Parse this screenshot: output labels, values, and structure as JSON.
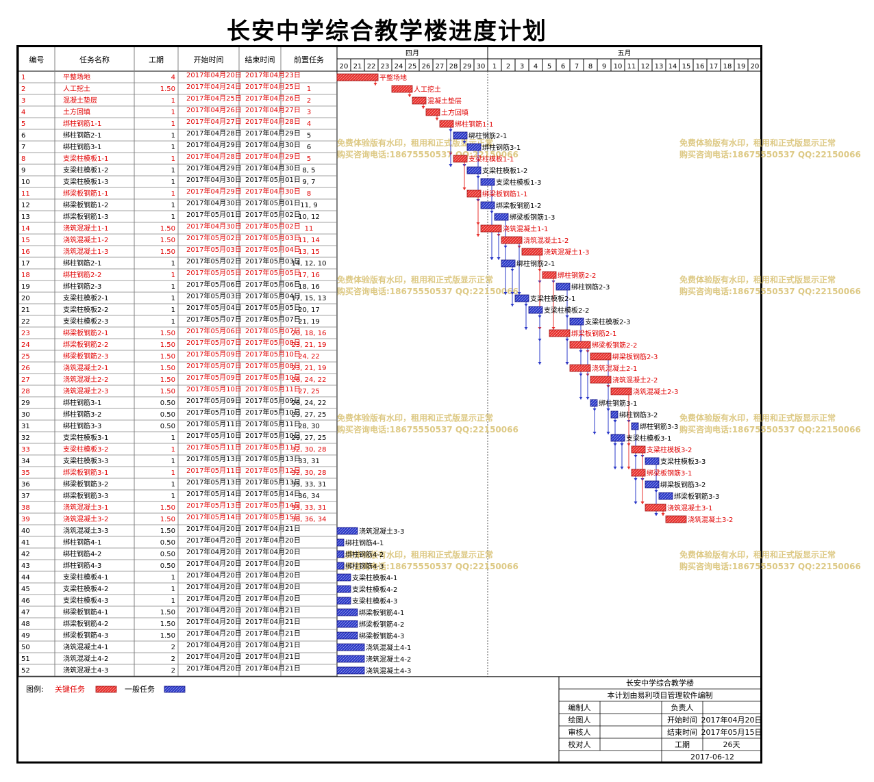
{
  "title": "长安中学综合教学楼进度计划",
  "headers": {
    "id": "编号",
    "name": "任务名称",
    "duration": "工期",
    "start": "开始时间",
    "end": "结束时间",
    "pred": "前置任务"
  },
  "months": [
    "四月",
    "五月"
  ],
  "day_labels": [
    "20",
    "21",
    "22",
    "23",
    "24",
    "25",
    "26",
    "27",
    "28",
    "29",
    "30",
    "1",
    "2",
    "3",
    "4",
    "5",
    "6",
    "7",
    "8",
    "9",
    "10",
    "11",
    "12",
    "13",
    "14",
    "15",
    "16",
    "17",
    "18",
    "19",
    "20"
  ],
  "watermark": {
    "line1": "免费体验版有水印，租用和正式版显示正常",
    "line2": "购买咨询电话:18675550537 QQ:22150066"
  },
  "legend": {
    "label": "图例:",
    "critical": "关键任务",
    "normal": "一般任务"
  },
  "colors": {
    "critical": "#e8302c",
    "normal": "#2a38c8",
    "critical_text": "#e00000",
    "grid": "#808080"
  },
  "footer": {
    "project": "长安中学综合教学楼",
    "software": "本计划由易利项目管理软件编制",
    "editor_label": "编制人",
    "owner_label": "负责人",
    "drawer_label": "绘图人",
    "start_label": "开始时间",
    "start_value": "2017年04月20日",
    "reviewer_label": "审核人",
    "end_label": "结束时间",
    "end_value": "2017年05月15日",
    "checker_label": "校对人",
    "duration_label": "工期",
    "duration_value": "26天",
    "date": "2017-06-12"
  },
  "chart_data": {
    "type": "gantt",
    "title": "长安中学综合教学楼进度计划",
    "x_range": [
      "2017-04-20",
      "2017-05-20"
    ],
    "tasks": [
      {
        "id": "1",
        "name": "平整场地",
        "dur": "4",
        "start": "2017年04月20日",
        "end": "2017年04月23日",
        "pred": "",
        "crit": true,
        "s": "04-20",
        "e": "04-23"
      },
      {
        "id": "2",
        "name": "人工挖土",
        "dur": "1.50",
        "start": "2017年04月24日",
        "end": "2017年04月25日",
        "pred": "1",
        "crit": true,
        "s": "04-24",
        "e": "04-25.5"
      },
      {
        "id": "3",
        "name": "混凝土垫层",
        "dur": "1",
        "start": "2017年04月25日",
        "end": "2017年04月26日",
        "pred": "2",
        "crit": true,
        "s": "04-25.5",
        "e": "04-26.5"
      },
      {
        "id": "4",
        "name": "土方回填",
        "dur": "1",
        "start": "2017年04月26日",
        "end": "2017年04月27日",
        "pred": "3",
        "crit": true,
        "s": "04-26.5",
        "e": "04-27.5"
      },
      {
        "id": "5",
        "name": "绑柱钢筋1-1",
        "dur": "1",
        "start": "2017年04月27日",
        "end": "2017年04月28日",
        "pred": "4",
        "crit": true,
        "s": "04-27.5",
        "e": "04-28.5"
      },
      {
        "id": "6",
        "name": "绑柱钢筋2-1",
        "dur": "1",
        "start": "2017年04月28日",
        "end": "2017年04月29日",
        "pred": "5",
        "crit": false,
        "s": "04-28.5",
        "e": "04-29.5"
      },
      {
        "id": "7",
        "name": "绑柱钢筋3-1",
        "dur": "1",
        "start": "2017年04月29日",
        "end": "2017年04月30日",
        "pred": "6",
        "crit": false,
        "s": "04-29.5",
        "e": "04-30.5"
      },
      {
        "id": "8",
        "name": "支梁柱模板1-1",
        "dur": "1",
        "start": "2017年04月28日",
        "end": "2017年04月29日",
        "pred": "5",
        "crit": true,
        "s": "04-28.5",
        "e": "04-29.5"
      },
      {
        "id": "9",
        "name": "支梁柱模板1-2",
        "dur": "1",
        "start": "2017年04月29日",
        "end": "2017年04月30日",
        "pred": "8, 5",
        "crit": false,
        "s": "04-29.5",
        "e": "04-30.5"
      },
      {
        "id": "10",
        "name": "支梁柱模板1-3",
        "dur": "1",
        "start": "2017年04月30日",
        "end": "2017年05月01日",
        "pred": "9, 7",
        "crit": false,
        "s": "04-30.5",
        "e": "05-01.5"
      },
      {
        "id": "11",
        "name": "绑梁板钢筋1-1",
        "dur": "1",
        "start": "2017年04月29日",
        "end": "2017年04月30日",
        "pred": "8",
        "crit": true,
        "s": "04-29.5",
        "e": "04-30.5"
      },
      {
        "id": "12",
        "name": "绑梁板钢筋1-2",
        "dur": "1",
        "start": "2017年04月30日",
        "end": "2017年05月01日",
        "pred": "11, 9",
        "crit": false,
        "s": "04-30.5",
        "e": "05-01.5"
      },
      {
        "id": "13",
        "name": "绑梁板钢筋1-3",
        "dur": "1",
        "start": "2017年05月01日",
        "end": "2017年05月02日",
        "pred": "10, 12",
        "crit": false,
        "s": "05-01.5",
        "e": "05-02.5"
      },
      {
        "id": "14",
        "name": "浇筑混凝土1-1",
        "dur": "1.50",
        "start": "2017年04月30日",
        "end": "2017年05月02日",
        "pred": "11",
        "crit": true,
        "s": "04-30.5",
        "e": "05-02"
      },
      {
        "id": "15",
        "name": "浇筑混凝土1-2",
        "dur": "1.50",
        "start": "2017年05月02日",
        "end": "2017年05月03日",
        "pred": "11, 14",
        "crit": true,
        "s": "05-02",
        "e": "05-03.5"
      },
      {
        "id": "16",
        "name": "浇筑混凝土1-3",
        "dur": "1.50",
        "start": "2017年05月03日",
        "end": "2017年05月04日",
        "pred": "13, 15",
        "crit": true,
        "s": "05-03.5",
        "e": "05-05"
      },
      {
        "id": "17",
        "name": "绑柱钢筋2-1",
        "dur": "1",
        "start": "2017年05月02日",
        "end": "2017年05月03日",
        "pred": "14, 12, 10",
        "crit": false,
        "s": "05-02",
        "e": "05-03"
      },
      {
        "id": "18",
        "name": "绑柱钢筋2-2",
        "dur": "1",
        "start": "2017年05月05日",
        "end": "2017年05月05日",
        "pred": "17, 16",
        "crit": true,
        "s": "05-05",
        "e": "05-06"
      },
      {
        "id": "19",
        "name": "绑柱钢筋2-3",
        "dur": "1",
        "start": "2017年05月06日",
        "end": "2017年05月06日",
        "pred": "18, 16",
        "crit": false,
        "s": "05-06",
        "e": "05-07"
      },
      {
        "id": "20",
        "name": "支梁柱模板2-1",
        "dur": "1",
        "start": "2017年05月03日",
        "end": "2017年05月04日",
        "pred": "17, 15, 13",
        "crit": false,
        "s": "05-03",
        "e": "05-04"
      },
      {
        "id": "21",
        "name": "支梁柱模板2-2",
        "dur": "1",
        "start": "2017年05月04日",
        "end": "2017年05月05日",
        "pred": "20, 17",
        "crit": false,
        "s": "05-04",
        "e": "05-05"
      },
      {
        "id": "22",
        "name": "支梁柱模板2-3",
        "dur": "1",
        "start": "2017年05月07日",
        "end": "2017年05月07日",
        "pred": "21, 19",
        "crit": false,
        "s": "05-07",
        "e": "05-08"
      },
      {
        "id": "23",
        "name": "绑梁板钢筋2-1",
        "dur": "1.50",
        "start": "2017年05月06日",
        "end": "2017年05月07日",
        "pred": "20, 18, 16",
        "crit": true,
        "s": "05-05.5",
        "e": "05-07"
      },
      {
        "id": "24",
        "name": "绑梁板钢筋2-2",
        "dur": "1.50",
        "start": "2017年05月07日",
        "end": "2017年05月08日",
        "pred": "23, 21, 19",
        "crit": true,
        "s": "05-07",
        "e": "05-08.5"
      },
      {
        "id": "25",
        "name": "绑梁板钢筋2-3",
        "dur": "1.50",
        "start": "2017年05月09日",
        "end": "2017年05月10日",
        "pred": "24, 22",
        "crit": true,
        "s": "05-08.5",
        "e": "05-10"
      },
      {
        "id": "26",
        "name": "浇筑混凝土2-1",
        "dur": "1.50",
        "start": "2017年05月07日",
        "end": "2017年05月08日",
        "pred": "23, 21, 19",
        "crit": true,
        "s": "05-07",
        "e": "05-08.5"
      },
      {
        "id": "27",
        "name": "浇筑混凝土2-2",
        "dur": "1.50",
        "start": "2017年05月09日",
        "end": "2017年05月10日",
        "pred": "26, 24, 22",
        "crit": true,
        "s": "05-08.5",
        "e": "05-10"
      },
      {
        "id": "28",
        "name": "浇筑混凝土2-3",
        "dur": "1.50",
        "start": "2017年05月10日",
        "end": "2017年05月11日",
        "pred": "27, 25",
        "crit": true,
        "s": "05-10",
        "e": "05-11.5"
      },
      {
        "id": "29",
        "name": "绑柱钢筋3-1",
        "dur": "0.50",
        "start": "2017年05月09日",
        "end": "2017年05月09日",
        "pred": "26, 24, 22",
        "crit": false,
        "s": "05-08.5",
        "e": "05-09"
      },
      {
        "id": "30",
        "name": "绑柱钢筋3-2",
        "dur": "0.50",
        "start": "2017年05月10日",
        "end": "2017年05月10日",
        "pred": "29, 27, 25",
        "crit": false,
        "s": "05-10",
        "e": "05-10.5"
      },
      {
        "id": "31",
        "name": "绑柱钢筋3-3",
        "dur": "0.50",
        "start": "2017年05月11日",
        "end": "2017年05月11日",
        "pred": "28, 30",
        "crit": false,
        "s": "05-11.5",
        "e": "05-12"
      },
      {
        "id": "32",
        "name": "支梁柱模板3-1",
        "dur": "1",
        "start": "2017年05月10日",
        "end": "2017年05月10日",
        "pred": "29, 27, 25",
        "crit": false,
        "s": "05-10",
        "e": "05-11"
      },
      {
        "id": "33",
        "name": "支梁柱模板3-2",
        "dur": "1",
        "start": "2017年05月11日",
        "end": "2017年05月11日",
        "pred": "32, 30, 28",
        "crit": true,
        "s": "05-11.5",
        "e": "05-12.5"
      },
      {
        "id": "34",
        "name": "支梁柱模板3-3",
        "dur": "1",
        "start": "2017年05月13日",
        "end": "2017年05月13日",
        "pred": "33, 31",
        "crit": false,
        "s": "05-12.5",
        "e": "05-13.5"
      },
      {
        "id": "35",
        "name": "绑梁板钢筋3-1",
        "dur": "1",
        "start": "2017年05月11日",
        "end": "2017年05月12日",
        "pred": "32, 30, 28",
        "crit": true,
        "s": "05-11.5",
        "e": "05-12.5"
      },
      {
        "id": "36",
        "name": "绑梁板钢筋3-2",
        "dur": "1",
        "start": "2017年05月13日",
        "end": "2017年05月13日",
        "pred": "35, 33, 31",
        "crit": false,
        "s": "05-12.5",
        "e": "05-13.5"
      },
      {
        "id": "37",
        "name": "绑梁板钢筋3-3",
        "dur": "1",
        "start": "2017年05月14日",
        "end": "2017年05月14日",
        "pred": "36, 34",
        "crit": false,
        "s": "05-13.5",
        "e": "05-14.5"
      },
      {
        "id": "38",
        "name": "浇筑混凝土3-1",
        "dur": "1.50",
        "start": "2017年05月13日",
        "end": "2017年05月14日",
        "pred": "35, 33, 31",
        "crit": true,
        "s": "05-12.5",
        "e": "05-14"
      },
      {
        "id": "39",
        "name": "浇筑混凝土3-2",
        "dur": "1.50",
        "start": "2017年05月14日",
        "end": "2017年05月15日",
        "pred": "38, 36, 34",
        "crit": true,
        "s": "05-14",
        "e": "05-15.5"
      },
      {
        "id": "40",
        "name": "浇筑混凝土3-3",
        "dur": "1.50",
        "start": "2017年04月20日",
        "end": "2017年04月21日",
        "pred": "",
        "crit": false,
        "s": "04-20",
        "e": "04-21.5"
      },
      {
        "id": "41",
        "name": "绑柱钢筋4-1",
        "dur": "0.50",
        "start": "2017年04月20日",
        "end": "2017年04月20日",
        "pred": "",
        "crit": false,
        "s": "04-20",
        "e": "04-20.5"
      },
      {
        "id": "42",
        "name": "绑柱钢筋4-2",
        "dur": "0.50",
        "start": "2017年04月20日",
        "end": "2017年04月20日",
        "pred": "",
        "crit": false,
        "s": "04-20",
        "e": "04-20.5"
      },
      {
        "id": "43",
        "name": "绑柱钢筋4-3",
        "dur": "0.50",
        "start": "2017年04月20日",
        "end": "2017年04月20日",
        "pred": "",
        "crit": false,
        "s": "04-20",
        "e": "04-20.5"
      },
      {
        "id": "44",
        "name": "支梁柱模板4-1",
        "dur": "1",
        "start": "2017年04月20日",
        "end": "2017年04月20日",
        "pred": "",
        "crit": false,
        "s": "04-20",
        "e": "04-21"
      },
      {
        "id": "45",
        "name": "支梁柱模板4-2",
        "dur": "1",
        "start": "2017年04月20日",
        "end": "2017年04月20日",
        "pred": "",
        "crit": false,
        "s": "04-20",
        "e": "04-21"
      },
      {
        "id": "46",
        "name": "支梁柱模板4-3",
        "dur": "1",
        "start": "2017年04月20日",
        "end": "2017年04月20日",
        "pred": "",
        "crit": false,
        "s": "04-20",
        "e": "04-21"
      },
      {
        "id": "47",
        "name": "绑梁板钢筋4-1",
        "dur": "1.50",
        "start": "2017年04月20日",
        "end": "2017年04月21日",
        "pred": "",
        "crit": false,
        "s": "04-20",
        "e": "04-21.5"
      },
      {
        "id": "48",
        "name": "绑梁板钢筋4-2",
        "dur": "1.50",
        "start": "2017年04月20日",
        "end": "2017年04月21日",
        "pred": "",
        "crit": false,
        "s": "04-20",
        "e": "04-21.5"
      },
      {
        "id": "49",
        "name": "绑梁板钢筋4-3",
        "dur": "1.50",
        "start": "2017年04月20日",
        "end": "2017年04月21日",
        "pred": "",
        "crit": false,
        "s": "04-20",
        "e": "04-21.5"
      },
      {
        "id": "50",
        "name": "浇筑混凝土4-1",
        "dur": "2",
        "start": "2017年04月20日",
        "end": "2017年04月21日",
        "pred": "",
        "crit": false,
        "s": "04-20",
        "e": "04-22"
      },
      {
        "id": "51",
        "name": "浇筑混凝土4-2",
        "dur": "2",
        "start": "2017年04月20日",
        "end": "2017年04月21日",
        "pred": "",
        "crit": false,
        "s": "04-20",
        "e": "04-22"
      },
      {
        "id": "52",
        "name": "浇筑混凝土4-3",
        "dur": "2",
        "start": "2017年04月20日",
        "end": "2017年04月21日",
        "pred": "",
        "crit": false,
        "s": "04-20",
        "e": "04-22"
      }
    ]
  }
}
